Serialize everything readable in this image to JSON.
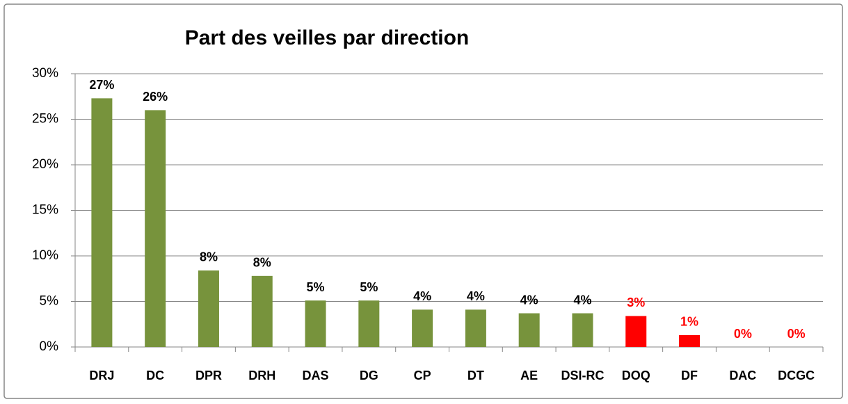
{
  "chart_data": {
    "type": "bar",
    "title": "Part des veilles par direction",
    "categories": [
      "DRJ",
      "DC",
      "DPR",
      "DRH",
      "DAS",
      "DG",
      "CP",
      "DT",
      "AE",
      "DSI-RC",
      "DOQ",
      "DF",
      "DAC",
      "DCGC"
    ],
    "values": [
      27.3,
      26,
      8.4,
      7.8,
      5.1,
      5.1,
      4.1,
      4.1,
      3.7,
      3.7,
      3.4,
      1.3,
      0,
      0
    ],
    "value_labels": [
      "27%",
      "26%",
      "8%",
      "8%",
      "5%",
      "5%",
      "4%",
      "4%",
      "4%",
      "4%",
      "3%",
      "1%",
      "0%",
      "0%"
    ],
    "colors": [
      "#77933c",
      "#77933c",
      "#77933c",
      "#77933c",
      "#77933c",
      "#77933c",
      "#77933c",
      "#77933c",
      "#77933c",
      "#77933c",
      "#ff0000",
      "#ff0000",
      "#ff0000",
      "#ff0000"
    ],
    "label_colors": [
      "#000000",
      "#000000",
      "#000000",
      "#000000",
      "#000000",
      "#000000",
      "#000000",
      "#000000",
      "#000000",
      "#000000",
      "#ff0000",
      "#ff0000",
      "#ff0000",
      "#ff0000"
    ],
    "ylim": [
      0,
      30
    ],
    "yticks": [
      {
        "value": 0,
        "label": "0%"
      },
      {
        "value": 5,
        "label": "5%"
      },
      {
        "value": 10,
        "label": "10%"
      },
      {
        "value": 15,
        "label": "15%"
      },
      {
        "value": 20,
        "label": "20%"
      },
      {
        "value": 25,
        "label": "25%"
      },
      {
        "value": 30,
        "label": "30%"
      }
    ],
    "grid": true
  }
}
